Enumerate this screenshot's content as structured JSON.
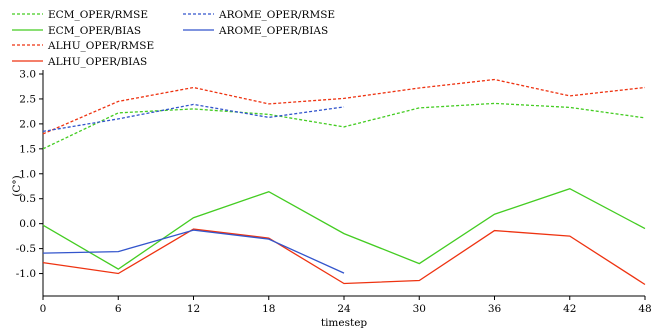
{
  "chart_data": {
    "type": "line",
    "title": "",
    "xlabel": "timestep",
    "ylabel": "(C°)",
    "x": [
      0,
      6,
      12,
      18,
      24,
      30,
      36,
      42,
      48
    ],
    "xticks": [
      "0",
      "6",
      "12",
      "18",
      "24",
      "30",
      "36",
      "42",
      "48"
    ],
    "yticks": [
      "-1.0",
      "-0.5",
      "0.0",
      "0.5",
      "1.0",
      "1.5",
      "2.0",
      "2.5",
      "3.0"
    ],
    "xlim": [
      0,
      48
    ],
    "ylim": [
      -1.45,
      3.08
    ],
    "grid": false,
    "legend": "top-left",
    "series": [
      {
        "name": "ECM_OPER/RMSE",
        "color": "#44cc22",
        "dash": true,
        "x": [
          0,
          6,
          12,
          18,
          24,
          30,
          36,
          42,
          48
        ],
        "values": [
          1.5,
          2.22,
          2.3,
          2.19,
          1.94,
          2.32,
          2.41,
          2.33,
          2.12
        ]
      },
      {
        "name": "ECM_OPER/BIAS",
        "color": "#44cc22",
        "dash": false,
        "x": [
          0,
          6,
          12,
          18,
          24,
          30,
          36,
          42,
          48
        ],
        "values": [
          -0.03,
          -0.91,
          0.12,
          0.64,
          -0.2,
          -0.8,
          0.19,
          0.7,
          -0.1
        ]
      },
      {
        "name": "ALHU_OPER/RMSE",
        "color": "#ee3311",
        "dash": true,
        "x": [
          0,
          6,
          12,
          18,
          24,
          30,
          36,
          42,
          48
        ],
        "values": [
          1.8,
          2.45,
          2.73,
          2.4,
          2.51,
          2.72,
          2.89,
          2.56,
          2.73
        ]
      },
      {
        "name": "ALHU_OPER/BIAS",
        "color": "#ee3311",
        "dash": false,
        "x": [
          0,
          6,
          12,
          18,
          24,
          30,
          36,
          42,
          48
        ],
        "values": [
          -0.78,
          -1.0,
          -0.11,
          -0.29,
          -1.2,
          -1.14,
          -0.14,
          -0.25,
          -1.22
        ]
      },
      {
        "name": "AROME_OPER/RMSE",
        "color": "#3355cc",
        "dash": true,
        "x": [
          0,
          6,
          12,
          18,
          24
        ],
        "values": [
          1.85,
          2.1,
          2.39,
          2.13,
          2.34
        ]
      },
      {
        "name": "AROME_OPER/BIAS",
        "color": "#3355cc",
        "dash": false,
        "x": [
          0,
          6,
          12,
          18,
          24
        ],
        "values": [
          -0.59,
          -0.56,
          -0.13,
          -0.31,
          -0.99
        ]
      }
    ]
  }
}
